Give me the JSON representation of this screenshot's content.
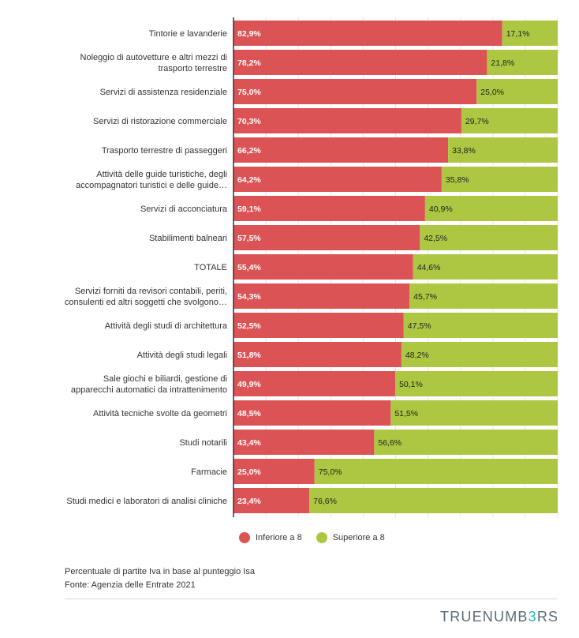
{
  "chart_data": {
    "type": "bar",
    "orientation": "horizontal",
    "stacked": true,
    "xlim": [
      0,
      100
    ],
    "categories": [
      [
        "Tintorie e lavanderie"
      ],
      [
        "Noleggio di autovetture e altri mezzi di",
        "trasporto terrestre"
      ],
      [
        "Servizi di assistenza residenziale"
      ],
      [
        "Servizi di ristorazione commerciale"
      ],
      [
        "Trasporto terrestre di passeggeri"
      ],
      [
        "Attività delle guide turistiche, degli",
        "accompagnatori turistici e delle guide…"
      ],
      [
        "Servizi di acconciatura"
      ],
      [
        "Stabilimenti balneari"
      ],
      [
        "TOTALE"
      ],
      [
        "Servizi forniti da revisori contabili, periti,",
        "consulenti ed altri soggetti che svolgono…"
      ],
      [
        "Attività degli studi di architettura"
      ],
      [
        "Attività degli studi legali"
      ],
      [
        "Sale giochi e biliardi, gestione di",
        "apparecchi automatici da intrattenimento"
      ],
      [
        "Attività tecniche svolte da geometri"
      ],
      [
        "Studi notarili"
      ],
      [
        "Farmacie"
      ],
      [
        "Studi medici e laboratori di analisi cliniche"
      ]
    ],
    "series": [
      {
        "name": "Inferiore a 8",
        "color": "#dc5356",
        "values": [
          82.9,
          78.2,
          75.0,
          70.3,
          66.2,
          64.2,
          59.1,
          57.5,
          55.4,
          54.3,
          52.5,
          51.8,
          49.9,
          48.5,
          43.4,
          25.0,
          23.4
        ],
        "labels": [
          "82,9%",
          "78,2%",
          "75,0%",
          "70,3%",
          "66,2%",
          "64,2%",
          "59,1%",
          "57,5%",
          "55,4%",
          "54,3%",
          "52,5%",
          "51,8%",
          "49,9%",
          "48,5%",
          "43,4%",
          "25,0%",
          "23,4%"
        ]
      },
      {
        "name": "Superiore a 8",
        "color": "#adc742",
        "values": [
          17.1,
          21.8,
          25.0,
          29.7,
          33.8,
          35.8,
          40.9,
          42.5,
          44.6,
          45.7,
          47.5,
          48.2,
          50.1,
          51.5,
          56.6,
          75.0,
          76.6
        ],
        "labels": [
          "17,1%",
          "21,8%",
          "25,0%",
          "29,7%",
          "33,8%",
          "35,8%",
          "40,9%",
          "42,5%",
          "44,6%",
          "45,7%",
          "47,5%",
          "48,2%",
          "50,1%",
          "51,5%",
          "56,6%",
          "75,0%",
          "76,6%"
        ]
      }
    ],
    "grid": true,
    "legend": "bottom"
  },
  "legend": {
    "items": [
      {
        "label": "Inferiore a 8",
        "color": "#dc5356"
      },
      {
        "label": "Superiore a 8",
        "color": "#adc742"
      }
    ]
  },
  "notes": {
    "description": "Percentuale di partite Iva in base al punteggio Isa",
    "source": "Fonte: Agenzia delle Entrate 2021"
  },
  "brand": {
    "part1": "TRUENUMB",
    "accent": "3",
    "part2": "RS"
  }
}
